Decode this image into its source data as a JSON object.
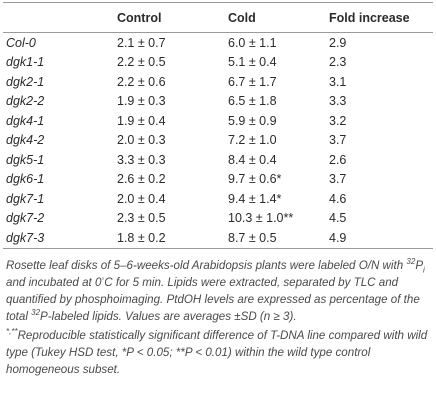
{
  "table": {
    "columns": [
      "Control",
      "Cold",
      "Fold increase"
    ],
    "rows": [
      [
        "Col-0",
        "2.1 ± 0.7",
        "6.0 ± 1.1",
        "2.9"
      ],
      [
        "dgk1-1",
        "2.2 ± 0.5",
        "5.1 ± 0.4",
        "2.3"
      ],
      [
        "dgk2-1",
        "2.2 ± 0.6",
        "6.7 ± 1.7",
        "3.1"
      ],
      [
        "dgk2-2",
        "1.9 ± 0.3",
        "6.5 ± 1.8",
        "3.3"
      ],
      [
        "dgk4-1",
        "1.9 ± 0.4",
        "5.9 ± 0.9",
        "3.2"
      ],
      [
        "dgk4-2",
        "2.0 ± 0.3",
        "7.2 ± 1.0",
        "3.7"
      ],
      [
        "dgk5-1",
        "3.3 ± 0.3",
        "8.4 ± 0.4",
        "2.6"
      ],
      [
        "dgk6-1",
        "2.6 ± 0.2",
        "9.7 ± 0.6*",
        "3.7"
      ],
      [
        "dgk7-1",
        "2.0 ± 0.4",
        "9.4 ± 1.4*",
        "4.6"
      ],
      [
        "dgk7-2",
        "2.3 ± 0.5",
        "10.3 ± 1.0**",
        "4.5"
      ],
      [
        "dgk7-3",
        "1.8 ± 0.2",
        "8.7 ± 0.5",
        "4.9"
      ]
    ]
  },
  "notes": [
    [
      "Rosette leaf disks of 5–6-weeks-old Arabidopsis plants were labeled O/N with ",
      "32",
      "P",
      "i",
      " and incubated at 0",
      "◦",
      "C for 5 min. Lipids were extracted, separated by TLC and quantified by phosphoimaging. PtdOH levels are expressed as percentage of the total ",
      "32",
      "P-labeled lipids. Values are averages ±SD (n ≥ 3)."
    ],
    [
      "*,**",
      "Reproducible statistically significant difference of T-DNA line compared with wild type (Tukey HSD test, *P < 0.05; **P < 0.01) within the wild type control homogeneous subset."
    ]
  ]
}
